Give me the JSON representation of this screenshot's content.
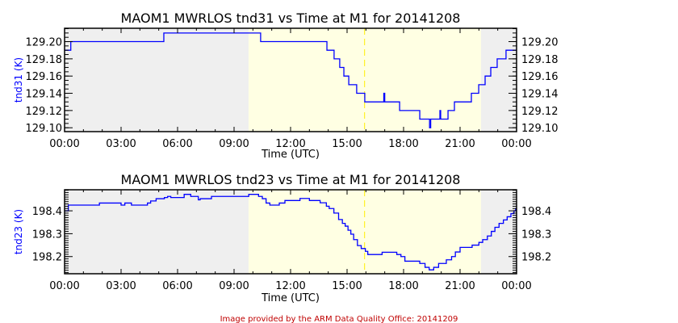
{
  "colors": {
    "line": "#0000ff",
    "night": "#efefef",
    "day": "#ffffe3",
    "noon_line": "#ffee00",
    "footer": "#c00000"
  },
  "footer": "Image provided by the ARM Data Quality Office: 20141209",
  "chart_data": [
    {
      "type": "line",
      "title": "MAOM1 MWRLOS tnd31 vs Time at M1 for 20141208",
      "xlabel": "Time (UTC)",
      "ylabel": "tnd31 (K)",
      "xlim": [
        0,
        24
      ],
      "ylim": [
        129.0955,
        129.2155
      ],
      "xticks": [
        "00:00",
        "03:00",
        "06:00",
        "09:00",
        "12:00",
        "15:00",
        "18:00",
        "21:00",
        "00:00"
      ],
      "yticks": [
        {
          "v": 129.1,
          "label": "129.10"
        },
        {
          "v": 129.12,
          "label": "129.12"
        },
        {
          "v": 129.14,
          "label": "129.14"
        },
        {
          "v": 129.16,
          "label": "129.16"
        },
        {
          "v": 129.18,
          "label": "129.18"
        },
        {
          "v": 129.2,
          "label": "129.20"
        }
      ],
      "yminor": 0.005,
      "daylight": [
        9.77,
        22.11
      ],
      "solar_noon": 15.93,
      "series": [
        {
          "name": "tnd31",
          "step": true,
          "points": [
            [
              0,
              129.19
            ],
            [
              0.33,
              129.2
            ],
            [
              5.27,
              129.21
            ],
            [
              10.41,
              129.2
            ],
            [
              13.93,
              129.19
            ],
            [
              14.31,
              129.18
            ],
            [
              14.61,
              129.17
            ],
            [
              14.83,
              129.16
            ],
            [
              15.09,
              129.15
            ],
            [
              15.51,
              129.14
            ],
            [
              15.94,
              129.13
            ],
            [
              16.95,
              129.13
            ],
            [
              16.95,
              129.14
            ],
            [
              17.0,
              129.14
            ],
            [
              17.0,
              129.13
            ],
            [
              17.79,
              129.12
            ],
            [
              18.86,
              129.11
            ],
            [
              19.38,
              129.11
            ],
            [
              19.38,
              129.1
            ],
            [
              19.44,
              129.1
            ],
            [
              19.44,
              129.11
            ],
            [
              19.93,
              129.11
            ],
            [
              19.93,
              129.12
            ],
            [
              19.97,
              129.12
            ],
            [
              19.97,
              129.11
            ],
            [
              20.36,
              129.12
            ],
            [
              20.7,
              129.13
            ],
            [
              21.6,
              129.14
            ],
            [
              21.99,
              129.15
            ],
            [
              22.33,
              129.16
            ],
            [
              22.63,
              129.17
            ],
            [
              22.97,
              129.18
            ],
            [
              23.44,
              129.19
            ],
            [
              24,
              129.19
            ]
          ]
        }
      ]
    },
    {
      "type": "line",
      "title": "MAOM1 MWRLOS tnd23 vs Time at M1 for 20141208",
      "xlabel": "Time (UTC)",
      "ylabel": "tnd23 (K)",
      "xlim": [
        0,
        24
      ],
      "ylim": [
        198.125,
        198.492
      ],
      "xticks": [
        "00:00",
        "03:00",
        "06:00",
        "09:00",
        "12:00",
        "15:00",
        "18:00",
        "21:00",
        "00:00"
      ],
      "yticks": [
        {
          "v": 198.2,
          "label": "198.2"
        },
        {
          "v": 198.3,
          "label": "198.3"
        },
        {
          "v": 198.4,
          "label": "198.4"
        }
      ],
      "yminor": 0.01,
      "daylight": [
        9.77,
        22.11
      ],
      "solar_noon": 15.93,
      "series": [
        {
          "name": "tnd23",
          "step": true,
          "points": [
            [
              0,
              198.4
            ],
            [
              0.2,
              198.425
            ],
            [
              1.85,
              198.434
            ],
            [
              3.0,
              198.425
            ],
            [
              3.2,
              198.434
            ],
            [
              3.55,
              198.425
            ],
            [
              4.4,
              198.434
            ],
            [
              4.57,
              198.443
            ],
            [
              4.86,
              198.453
            ],
            [
              5.3,
              198.458
            ],
            [
              5.47,
              198.463
            ],
            [
              5.64,
              198.458
            ],
            [
              6.35,
              198.472
            ],
            [
              6.7,
              198.463
            ],
            [
              7.1,
              198.448
            ],
            [
              7.2,
              198.453
            ],
            [
              7.8,
              198.463
            ],
            [
              9.78,
              198.472
            ],
            [
              10.3,
              198.463
            ],
            [
              10.5,
              198.453
            ],
            [
              10.7,
              198.434
            ],
            [
              10.9,
              198.425
            ],
            [
              11.4,
              198.434
            ],
            [
              11.7,
              198.445
            ],
            [
              12.5,
              198.454
            ],
            [
              13.0,
              198.445
            ],
            [
              13.57,
              198.435
            ],
            [
              13.9,
              198.42
            ],
            [
              14.05,
              198.41
            ],
            [
              14.3,
              198.39
            ],
            [
              14.55,
              198.362
            ],
            [
              14.75,
              198.345
            ],
            [
              14.9,
              198.333
            ],
            [
              15.05,
              198.315
            ],
            [
              15.2,
              198.298
            ],
            [
              15.35,
              198.274
            ],
            [
              15.55,
              198.248
            ],
            [
              15.75,
              198.235
            ],
            [
              15.97,
              198.223
            ],
            [
              16.1,
              198.209
            ],
            [
              16.86,
              198.219
            ],
            [
              17.64,
              198.209
            ],
            [
              17.86,
              198.2
            ],
            [
              18.07,
              198.18
            ],
            [
              18.86,
              198.17
            ],
            [
              19.14,
              198.153
            ],
            [
              19.36,
              198.142
            ],
            [
              19.6,
              198.153
            ],
            [
              19.86,
              198.17
            ],
            [
              20.27,
              198.186
            ],
            [
              20.55,
              198.2
            ],
            [
              20.75,
              198.22
            ],
            [
              21.0,
              198.24
            ],
            [
              21.64,
              198.25
            ],
            [
              22.0,
              198.262
            ],
            [
              22.2,
              198.274
            ],
            [
              22.45,
              198.29
            ],
            [
              22.66,
              198.31
            ],
            [
              22.85,
              198.328
            ],
            [
              23.07,
              198.345
            ],
            [
              23.3,
              198.36
            ],
            [
              23.5,
              198.374
            ],
            [
              23.7,
              198.388
            ],
            [
              23.86,
              198.4
            ],
            [
              23.95,
              198.41
            ],
            [
              24,
              198.41
            ]
          ]
        }
      ]
    }
  ]
}
